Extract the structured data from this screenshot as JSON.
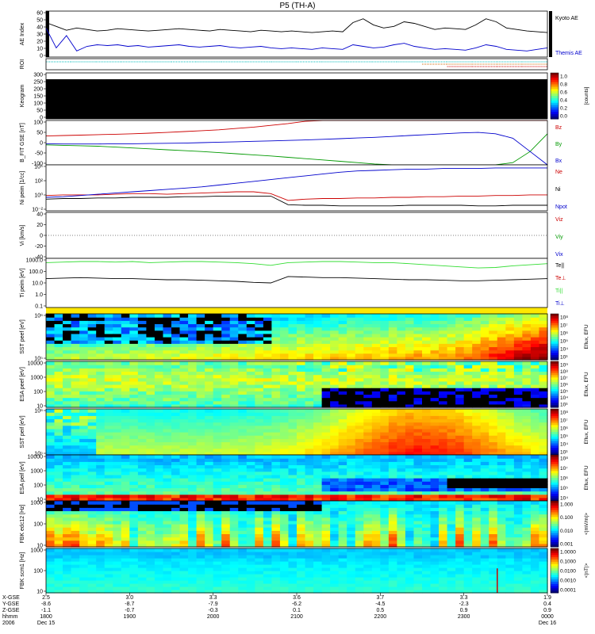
{
  "title": "P5 (TH-A)",
  "chart_data": [
    {
      "id": "ae",
      "type": "line",
      "ylabel": "AE Index",
      "ylim": [
        0,
        60
      ],
      "yticks": [
        "60",
        "50",
        "40",
        "30",
        "20",
        "10",
        "0"
      ],
      "series": [
        {
          "name": "Kyoto AE",
          "color": "#000000",
          "values": [
            45,
            40,
            35,
            38,
            36,
            34,
            35,
            37,
            36,
            35,
            34,
            35,
            36,
            37,
            36,
            35,
            34,
            36,
            35,
            34,
            33,
            35,
            34,
            33,
            34,
            33,
            32,
            33,
            34,
            33,
            45,
            50,
            42,
            38,
            40,
            46,
            44,
            40,
            36,
            38,
            37,
            36,
            42,
            50,
            46,
            38,
            36,
            34,
            33,
            32
          ]
        },
        {
          "name": "Themis AE",
          "color": "#0000cc",
          "values": [
            38,
            12,
            28,
            8,
            14,
            16,
            15,
            16,
            14,
            15,
            13,
            14,
            15,
            16,
            14,
            13,
            14,
            15,
            13,
            12,
            13,
            14,
            12,
            11,
            12,
            11,
            10,
            12,
            11,
            10,
            16,
            14,
            12,
            13,
            16,
            18,
            14,
            12,
            10,
            11,
            10,
            9,
            12,
            16,
            14,
            10,
            9,
            8,
            10,
            12
          ]
        }
      ]
    },
    {
      "id": "roi",
      "type": "line",
      "ylabel": "ROI",
      "series": [
        {
          "name": "",
          "color": "#00bbbb",
          "values": [
            1,
            1,
            1,
            1,
            1,
            1,
            1,
            1,
            1,
            1,
            1,
            1,
            1,
            1,
            1,
            1,
            1,
            1,
            1,
            1
          ]
        },
        {
          "name": "",
          "color": "#cc6600",
          "values": [
            0,
            0,
            0,
            0,
            0,
            0,
            0,
            0,
            0,
            0,
            0,
            0,
            0,
            0,
            0,
            1,
            1,
            1,
            1,
            1
          ]
        },
        {
          "name": "",
          "color": "#cc0000",
          "values": [
            0,
            0,
            0,
            0,
            0,
            0,
            0,
            0,
            0,
            0,
            0,
            0,
            0,
            0,
            0,
            0,
            1,
            1,
            1,
            1
          ]
        }
      ]
    },
    {
      "id": "keogram",
      "type": "heatmap",
      "ylabel": "Keogram",
      "yticks": [
        "300",
        "250",
        "200",
        "150",
        "100",
        "50",
        "0"
      ],
      "colorbar": {
        "ticks": [
          "1.0",
          "0.8",
          "0.6",
          "0.4",
          "0.2",
          "0.0"
        ],
        "label": "[counts]"
      }
    },
    {
      "id": "bfield",
      "type": "line",
      "ylabel": "B_FIT GSE [nT]",
      "ylim": [
        -100,
        100
      ],
      "yticks": [
        "100",
        "50",
        "0",
        "-50",
        "-100"
      ],
      "series": [
        {
          "name": "Bz",
          "color": "#cc0000",
          "values": [
            30,
            32,
            34,
            36,
            38,
            40,
            43,
            46,
            50,
            54,
            58,
            64,
            70,
            78,
            86,
            96,
            100,
            100,
            100,
            100,
            100,
            100,
            100,
            100,
            100,
            100,
            100,
            100,
            100,
            100
          ]
        },
        {
          "name": "By",
          "color": "#009900",
          "values": [
            -10,
            -12,
            -14,
            -16,
            -20,
            -24,
            -28,
            -32,
            -36,
            -40,
            -45,
            -50,
            -55,
            -60,
            -66,
            -72,
            -78,
            -84,
            -90,
            -96,
            -100,
            -100,
            -100,
            -100,
            -100,
            -100,
            -100,
            -90,
            -40,
            40
          ]
        },
        {
          "name": "Bx",
          "color": "#0000cc",
          "values": [
            -5,
            -6,
            -6,
            -6,
            -5,
            -5,
            -4,
            -3,
            -2,
            0,
            2,
            4,
            6,
            8,
            10,
            12,
            15,
            18,
            21,
            24,
            28,
            32,
            36,
            40,
            44,
            46,
            40,
            20,
            -40,
            -100
          ]
        }
      ]
    },
    {
      "id": "density",
      "type": "line",
      "ylabel": "Ni peim [1/cc]",
      "yticks": [
        "10⁴",
        "10²",
        "10⁰",
        "10⁻²"
      ],
      "series": [
        {
          "name": "Ne",
          "color": "#cc0000",
          "values": [
            0.0,
            0.1,
            0.1,
            0.1,
            0.2,
            0.3,
            0.3,
            0.2,
            0.3,
            0.4,
            0.5,
            0.6,
            0.6,
            0.3,
            -0.8,
            -0.6,
            -0.5,
            -0.5,
            -0.4,
            -0.4,
            -0.3,
            -0.3,
            -0.2,
            -0.2,
            -0.1,
            -0.1,
            0.0,
            0.0,
            0.1,
            0.1
          ]
        },
        {
          "name": "Ni",
          "color": "#000000",
          "values": [
            -0.6,
            -0.5,
            -0.5,
            -0.4,
            -0.4,
            -0.3,
            -0.3,
            -0.3,
            -0.2,
            -0.2,
            -0.1,
            -0.1,
            -0.1,
            -0.1,
            -1.5,
            -1.6,
            -1.6,
            -1.7,
            -1.7,
            -1.7,
            -1.7,
            -1.6,
            -1.6,
            -1.6,
            -1.6,
            -1.7,
            -1.7,
            -1.6,
            -1.6,
            -1.6
          ]
        },
        {
          "name": "Npot",
          "color": "#0000cc",
          "values": [
            -0.3,
            -0.2,
            0.0,
            0.2,
            0.4,
            0.6,
            0.8,
            1.0,
            1.2,
            1.4,
            1.7,
            2.0,
            2.3,
            2.6,
            2.9,
            3.2,
            3.5,
            3.8,
            4.0,
            4.1,
            4.2,
            4.3,
            4.3,
            4.4,
            4.4,
            4.4,
            4.5,
            4.5,
            4.5,
            4.5
          ]
        }
      ]
    },
    {
      "id": "velocity",
      "type": "line",
      "ylabel": "Vi [km/s]",
      "ylim": [
        -40,
        40
      ],
      "yticks": [
        "40",
        "20",
        "0",
        "-20",
        "-40"
      ],
      "series": [
        {
          "name": "Viz",
          "color": "#cc0000",
          "values": []
        },
        {
          "name": "Viy",
          "color": "#009900",
          "values": []
        },
        {
          "name": "Vix",
          "color": "#0000cc",
          "values": []
        }
      ]
    },
    {
      "id": "temperature",
      "type": "line",
      "ylabel": "Ti peim [eV]",
      "yticks": [
        "1000.0",
        "100.0",
        "10.0",
        "1.0",
        "0.1"
      ],
      "series": [
        {
          "name": "Te||",
          "color": "#000000",
          "values": [
            1.7,
            1.75,
            1.8,
            1.75,
            1.7,
            1.7,
            1.65,
            1.6,
            1.6,
            1.55,
            1.5,
            1.45,
            1.35,
            1.3,
            1.9,
            1.85,
            1.8,
            1.8,
            1.75,
            1.7,
            1.65,
            1.6,
            1.6,
            1.55,
            1.5,
            1.5,
            1.55,
            1.6,
            1.65,
            1.7
          ]
        },
        {
          "name": "Te⊥",
          "color": "#cc0000",
          "values": []
        },
        {
          "name": "Ti||",
          "color": "#33dd33",
          "values": [
            3.2,
            3.25,
            3.3,
            3.3,
            3.25,
            3.3,
            3.2,
            3.25,
            3.3,
            3.3,
            3.25,
            3.2,
            3.1,
            2.95,
            3.2,
            3.25,
            3.3,
            3.3,
            3.25,
            3.2,
            3.2,
            3.1,
            3.0,
            2.9,
            2.8,
            2.7,
            2.75,
            2.9,
            3.0,
            3.1
          ]
        },
        {
          "name": "Ti⊥",
          "color": "#0000cc",
          "values": []
        }
      ]
    },
    {
      "id": "sst_e",
      "type": "heatmap",
      "ylabel": "SST peef [eV]",
      "yticks": [
        "10⁶",
        "10⁵"
      ],
      "colorbar": {
        "ticks": [
          "10⁸",
          "10⁷",
          "10⁶",
          "10⁵",
          "10⁴",
          "10³"
        ],
        "label": "Eflux, EFU"
      }
    },
    {
      "id": "esa_e",
      "type": "heatmap",
      "ylabel": "ESA peef [eV]",
      "yticks": [
        "10000",
        "1000",
        "100",
        "10"
      ],
      "colorbar": {
        "ticks": [
          "10⁹",
          "10⁸",
          "10⁷",
          "10⁶",
          "10⁵",
          "10⁴",
          "10³"
        ],
        "label": "Eflux, EFU"
      }
    },
    {
      "id": "sst_i",
      "type": "heatmap",
      "ylabel": "SST peif [eV]",
      "yticks": [
        "10⁶",
        "10⁵"
      ],
      "colorbar": {
        "ticks": [
          "10⁸",
          "10⁷",
          "10⁶",
          "10⁵",
          "10⁴",
          "10³"
        ],
        "label": "Eflux, EFU"
      }
    },
    {
      "id": "esa_i",
      "type": "heatmap",
      "ylabel": "ESA peif [eV]",
      "yticks": [
        "10000",
        "1000",
        "100",
        "10"
      ],
      "colorbar": {
        "ticks": [
          "10⁸",
          "10⁷",
          "10⁶",
          "10⁵",
          "10⁴"
        ],
        "label": "Eflux, EFU"
      }
    },
    {
      "id": "fbk_e",
      "type": "heatmap",
      "ylabel": "FBK edc12 [Hz]",
      "yticks": [
        "1000",
        "100",
        "10"
      ],
      "colorbar": {
        "ticks": [
          "1.000",
          "0.100",
          "0.010",
          "0.001"
        ],
        "label": "<|mV/m|>"
      }
    },
    {
      "id": "fbk_b",
      "type": "heatmap",
      "ylabel": "FBK scm1 [Hz]",
      "yticks": [
        "1000",
        "100",
        "10"
      ],
      "colorbar": {
        "ticks": [
          "1.0000",
          "0.1000",
          "0.0100",
          "0.0010",
          "0.0001"
        ],
        "label": "<|nT|>"
      }
    }
  ],
  "xaxis": {
    "row_labels": [
      "X-GSE",
      "Y-GSE",
      "Z-GSE",
      "hhmm",
      "2006"
    ],
    "columns": [
      {
        "rows": [
          "2.5",
          "-8.6",
          "-1.1",
          "1800",
          "Dec 15"
        ]
      },
      {
        "rows": [
          "3.0",
          "-8.7",
          "-0.7",
          "1900",
          ""
        ]
      },
      {
        "rows": [
          "3.3",
          "-7.9",
          "-0.3",
          "2000",
          ""
        ]
      },
      {
        "rows": [
          "3.6",
          "-6.2",
          "0.1",
          "2100",
          ""
        ]
      },
      {
        "rows": [
          "3.7",
          "-4.5",
          "0.5",
          "2200",
          ""
        ]
      },
      {
        "rows": [
          "3.3",
          "-2.3",
          "0.9",
          "2300",
          ""
        ]
      },
      {
        "rows": [
          "1.9",
          "0.4",
          "0.9",
          "0000",
          "Dec 16"
        ]
      }
    ]
  }
}
